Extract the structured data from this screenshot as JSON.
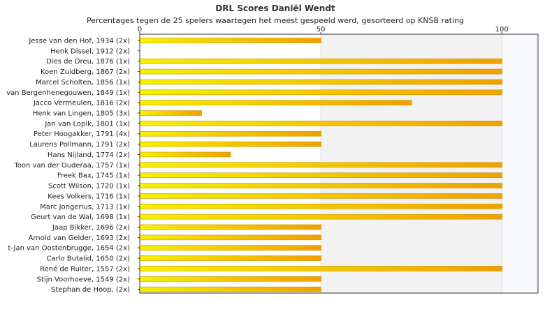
{
  "chart_data": {
    "type": "bar",
    "orientation": "horizontal",
    "title": "DRL Scores Daniël Wendt",
    "subtitle": "Percentages tegen de 25 spelers waartegen het meest gespeeld werd, gesorteerd op KNSB rating",
    "xlim": [
      0,
      110
    ],
    "ticks": [
      0,
      50,
      100
    ],
    "grid": true,
    "shaded_band": [
      50,
      100
    ],
    "categories": [
      "Jesse van den Hof, 1934 (2x)",
      "Henk Dissel, 1912 (2x)",
      "Dies de Dreu, 1876 (1x)",
      "Koen Zuidberg, 1867 (2x)",
      "Marcel Scholten, 1856 (1x)",
      "van Bergenhenegouwen, 1849 (1x)",
      "Jacco Vermeulen, 1816 (2x)",
      "Henk van Lingen, 1805 (3x)",
      "Jan van Lopik, 1801 (1x)",
      "Peter Hoogakker, 1791 (4x)",
      "Laurens Pollmann, 1791 (2x)",
      "Hans Nijland, 1774 (2x)",
      "Toon van der Ouderaa, 1757 (1x)",
      "Freek Bax, 1745 (1x)",
      "Scott Wilson, 1720 (1x)",
      "Kees Volkers, 1716 (1x)",
      "Marc Jongerius, 1713 (1x)",
      "Geurt van de Wal, 1698 (1x)",
      "Jaap Bikker, 1696 (2x)",
      "Arnold van Gelder, 1693 (2x)",
      "t-Jan van Oostenbrugge, 1654 (2x)",
      "Carlo Butalid, 1650 (2x)",
      "René de Ruiter, 1557 (2x)",
      "Stijn Voorhoeve, 1549 (2x)",
      "Stephan de Hoop,  (2x)"
    ],
    "values": [
      50,
      0,
      100,
      100,
      100,
      100,
      75,
      17,
      100,
      50,
      50,
      25,
      100,
      100,
      100,
      100,
      100,
      100,
      50,
      50,
      50,
      50,
      100,
      50,
      50
    ]
  },
  "colors": {
    "bar_start": "#f5f000",
    "bar_end": "#f0a000",
    "bar_border": "#c89400",
    "band": "#f2f2f2",
    "right_band": "#f7f8fb",
    "grid": "#e0e0e0",
    "axis": "#333333"
  }
}
